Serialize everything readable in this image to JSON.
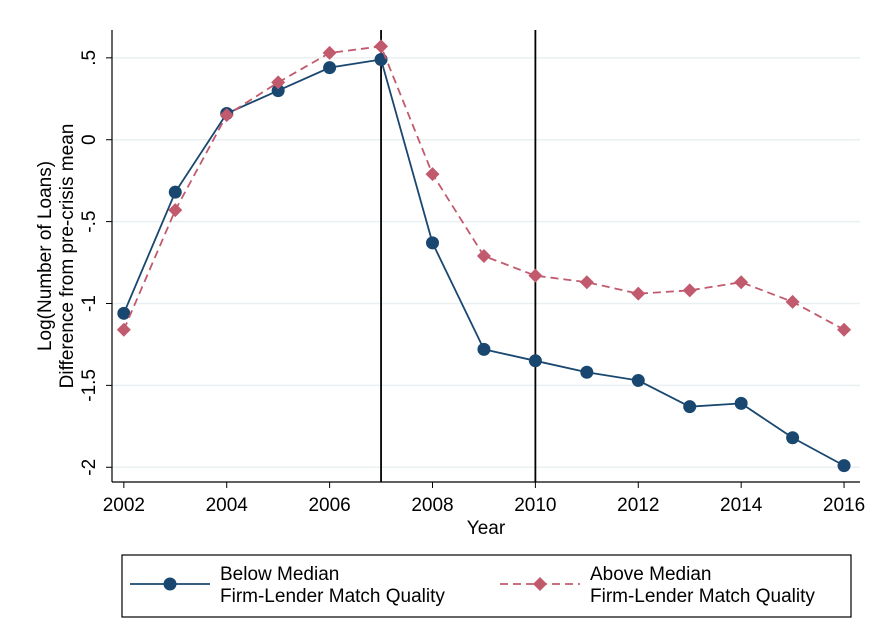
{
  "chart_data": {
    "type": "line",
    "y_label": [
      "Log(Number of Loans)",
      "Difference from pre-crisis mean"
    ],
    "x_label": "Year",
    "x": [
      2002,
      2003,
      2004,
      2005,
      2006,
      2007,
      2008,
      2009,
      2010,
      2011,
      2012,
      2013,
      2014,
      2015,
      2016
    ],
    "series": [
      {
        "name": "Below Median\nFirm-Lender Match Quality",
        "color": "#1a476f",
        "style": "solid",
        "marker": "circle",
        "values": [
          -1.06,
          -0.32,
          0.16,
          0.3,
          0.44,
          0.49,
          -0.63,
          -1.28,
          -1.35,
          -1.42,
          -1.47,
          -1.63,
          -1.61,
          -1.82,
          -1.99
        ]
      },
      {
        "name": "Above Median\nFirm-Lender Match Quality",
        "color": "#c25a6e",
        "style": "dashed",
        "marker": "diamond",
        "values": [
          -1.16,
          -0.43,
          0.15,
          0.35,
          0.53,
          0.57,
          -0.21,
          -0.71,
          -0.83,
          -0.87,
          -0.94,
          -0.92,
          -0.87,
          -0.99,
          -1.16
        ]
      }
    ],
    "xlim": [
      2001.77,
      2016.31
    ],
    "ylim": [
      -2.09,
      0.67
    ],
    "xticks": [
      2002,
      2004,
      2006,
      2008,
      2010,
      2012,
      2014,
      2016
    ],
    "yticks": [
      {
        "value": 0.5,
        "label": ".5"
      },
      0,
      {
        "value": -0.5,
        "label": "-.5"
      },
      -1,
      {
        "value": -1.5,
        "label": "-1.5"
      },
      -2
    ],
    "vlines": [
      2007,
      2010
    ],
    "grid": true,
    "legend": "bottom"
  }
}
